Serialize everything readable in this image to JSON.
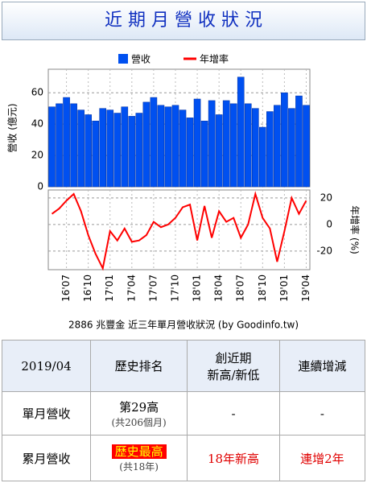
{
  "title": "近 期 月 營 收 狀 況",
  "chart_data": {
    "type": "bar",
    "ylabel": "營收 (億元)",
    "y2label": "年增率 (%)",
    "caption": "2886 兆豐金 近三年單月營收狀況 (by Goodinfo.tw)",
    "categories": [
      null,
      null,
      "16'07",
      null,
      null,
      "16'10",
      null,
      null,
      "17'01",
      null,
      null,
      "17'04",
      null,
      null,
      "17'07",
      null,
      null,
      "17'10",
      null,
      null,
      "18'01",
      null,
      null,
      "18'04",
      null,
      null,
      "18'07",
      null,
      null,
      "18'10",
      null,
      null,
      "19'01",
      null,
      null,
      "19'04"
    ],
    "series": [
      {
        "name": "營收",
        "color": "#0050f0",
        "values": [
          51,
          53,
          57,
          53,
          49,
          46,
          42,
          50,
          49,
          47,
          51,
          45,
          47,
          54,
          57,
          52,
          51,
          52,
          49,
          44,
          56,
          42,
          55,
          46,
          55,
          53,
          70,
          53,
          50,
          38,
          48,
          52,
          60,
          50,
          58,
          52
        ]
      },
      {
        "name": "年增率",
        "color": "#ff0000",
        "type": "line",
        "axis": "y2",
        "values": [
          8,
          12,
          18,
          23,
          10,
          -8,
          -22,
          -33,
          -5,
          -12,
          -3,
          -13,
          -12,
          -8,
          2,
          -2,
          0,
          5,
          13,
          15,
          -12,
          14,
          -10,
          10,
          2,
          5,
          -10,
          0,
          23,
          5,
          -3,
          -28,
          -5,
          20,
          8,
          18
        ]
      }
    ],
    "ylim": [
      0,
      75
    ],
    "yticks": [
      0,
      20,
      40,
      60
    ],
    "y2lim": [
      -34,
      26
    ],
    "y2ticks": [
      -20,
      0,
      20
    ],
    "grid": true,
    "legend": "top"
  },
  "table": {
    "header": [
      "2019/04",
      "歷史排名",
      "創近期\n新高/新低",
      "連續增減"
    ],
    "rows": [
      [
        "單月營收",
        "第29高",
        "(共206個月)",
        "-",
        "-"
      ],
      [
        "累月營收",
        "歷史最高",
        "(共18年)",
        "18年新高",
        "連增2年"
      ]
    ]
  }
}
